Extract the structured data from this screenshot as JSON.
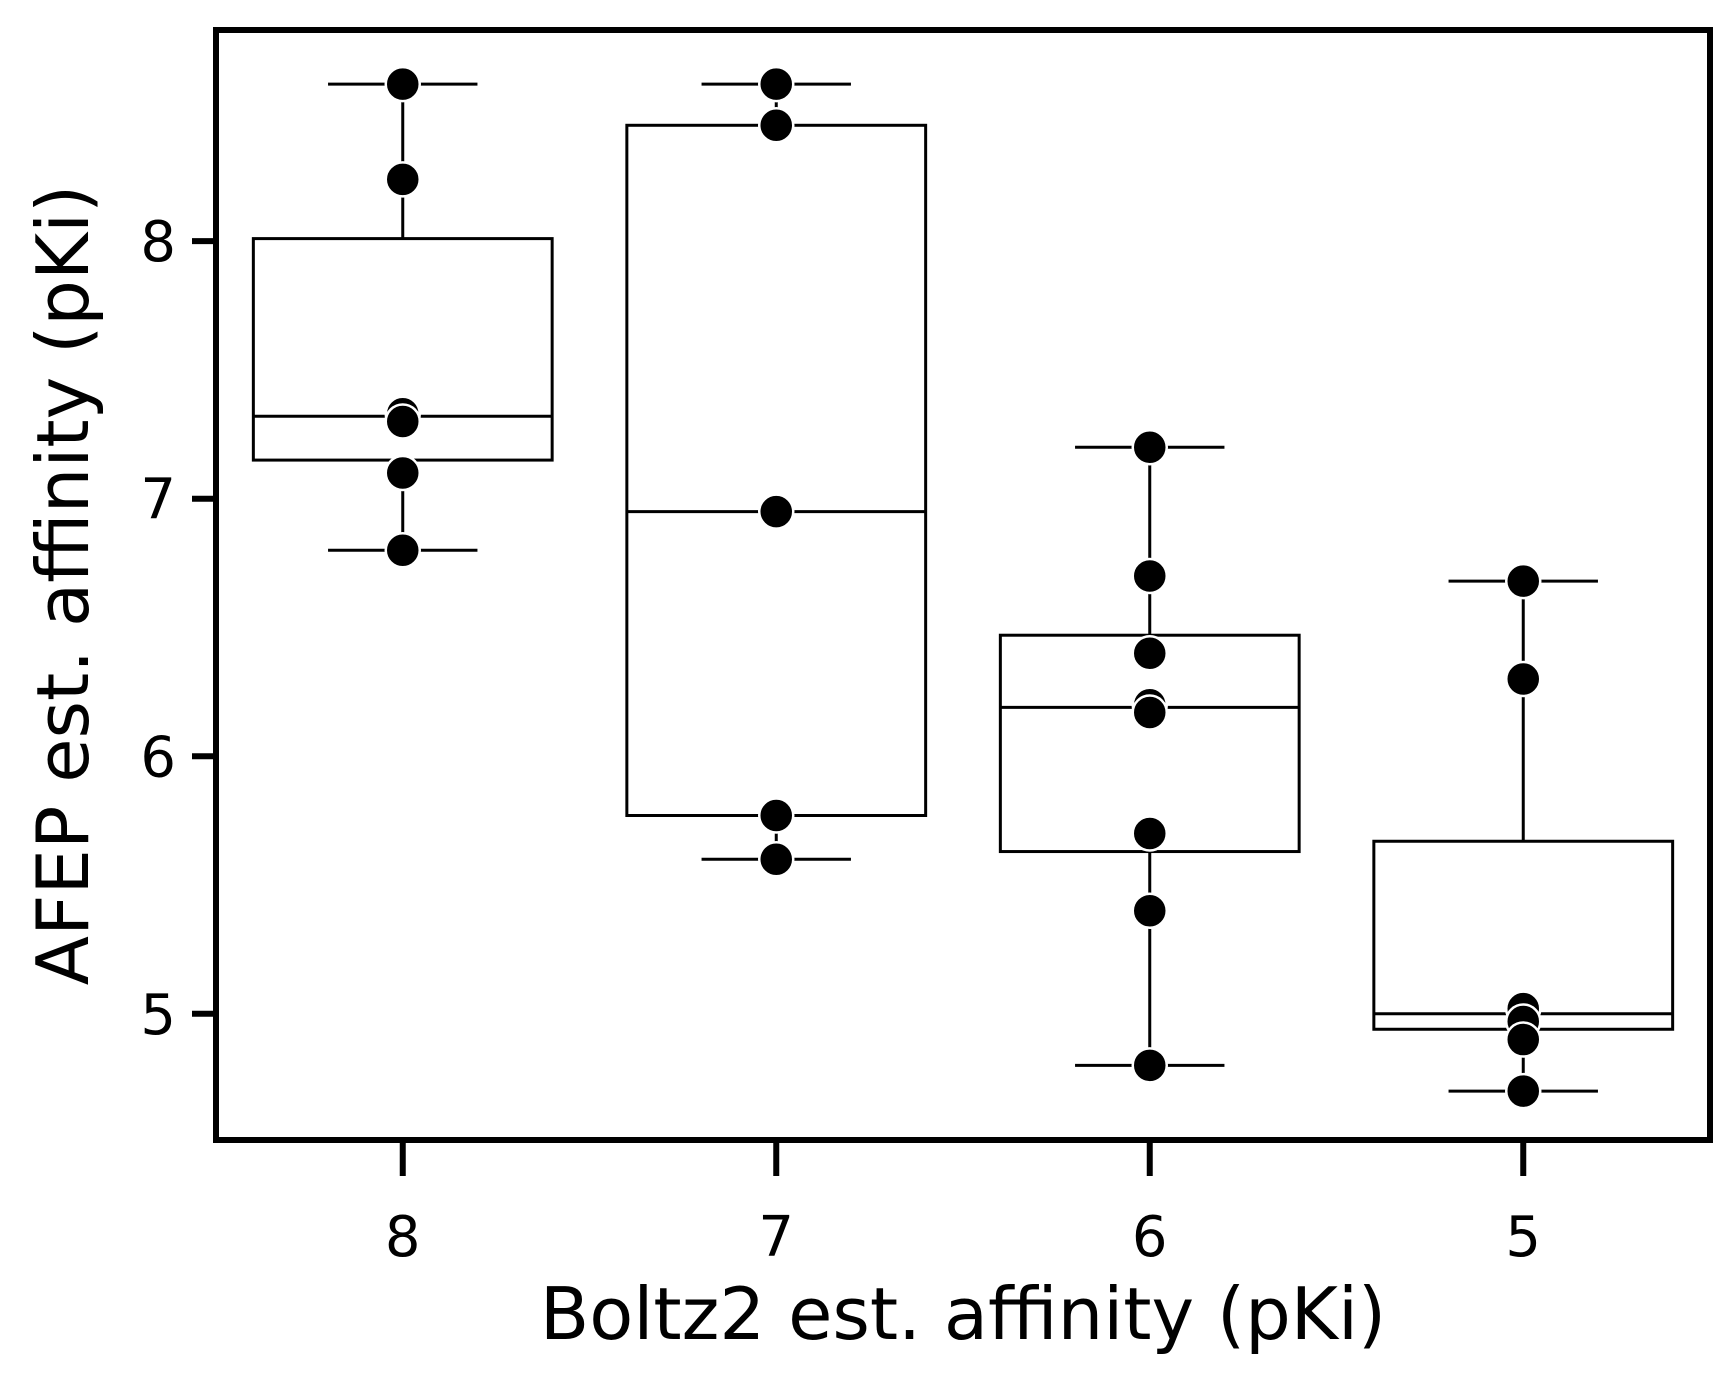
{
  "chart_data": {
    "type": "box",
    "xlabel": "Boltz2 est. affinity (pKi)",
    "ylabel": "AFEP est. affinity (pKi)",
    "categories": [
      "8",
      "7",
      "6",
      "5"
    ],
    "yticks": [
      5,
      6,
      7,
      8
    ],
    "ylim": [
      4.51,
      8.82
    ],
    "grid": false,
    "boxes": [
      {
        "category": "8",
        "whisker_low": 6.8,
        "q1": 7.15,
        "median": 7.32,
        "q3": 8.01,
        "whisker_high": 8.61,
        "points": [
          8.61,
          8.24,
          7.33,
          7.3,
          7.1,
          6.8
        ]
      },
      {
        "category": "7",
        "whisker_low": 5.6,
        "q1": 5.77,
        "median": 6.95,
        "q3": 8.45,
        "whisker_high": 8.61,
        "points": [
          8.61,
          8.45,
          6.95,
          5.77,
          5.6
        ]
      },
      {
        "category": "6",
        "whisker_low": 4.8,
        "q1": 5.63,
        "median": 6.19,
        "q3": 6.47,
        "whisker_high": 7.2,
        "points": [
          7.2,
          6.7,
          6.4,
          6.2,
          6.17,
          5.7,
          5.4,
          4.8
        ]
      },
      {
        "category": "5",
        "whisker_low": 4.7,
        "q1": 4.94,
        "median": 5.0,
        "q3": 5.67,
        "whisker_high": 6.68,
        "points": [
          6.68,
          6.3,
          5.02,
          4.97,
          4.9,
          4.7
        ]
      }
    ]
  }
}
